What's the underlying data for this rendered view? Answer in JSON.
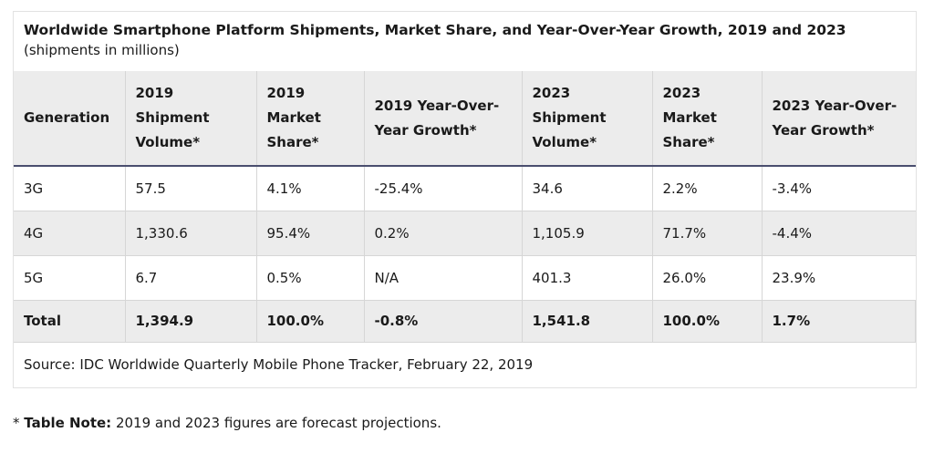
{
  "title": "Worldwide Smartphone Platform Shipments, Market Share, and Year-Over-Year Growth, 2019 and 2023",
  "subtitle": "(shipments in millions)",
  "columns": [
    "Generation",
    "2019 Shipment Volume*",
    "2019 Market Share*",
    "2019 Year-Over-Year Growth*",
    "2023 Shipment Volume*",
    "2023 Market Share*",
    "2023 Year-Over-Year Growth*"
  ],
  "rows": [
    [
      "3G",
      "57.5",
      "4.1%",
      "-25.4%",
      "34.6",
      "2.2%",
      "-3.4%"
    ],
    [
      "4G",
      "1,330.6",
      "95.4%",
      "0.2%",
      "1,105.9",
      "71.7%",
      "-4.4%"
    ],
    [
      "5G",
      "6.7",
      "0.5%",
      "N/A",
      "401.3",
      "26.0%",
      "23.9%"
    ],
    [
      "Total",
      "1,394.9",
      "100.0%",
      "-0.8%",
      "1,541.8",
      "100.0%",
      "1.7%"
    ]
  ],
  "source": "Source: IDC Worldwide Quarterly Mobile Phone Tracker, February 22, 2019",
  "note": {
    "prefix": "* ",
    "label": "Table Note:",
    "text": " 2019 and 2023 figures are forecast projections."
  }
}
